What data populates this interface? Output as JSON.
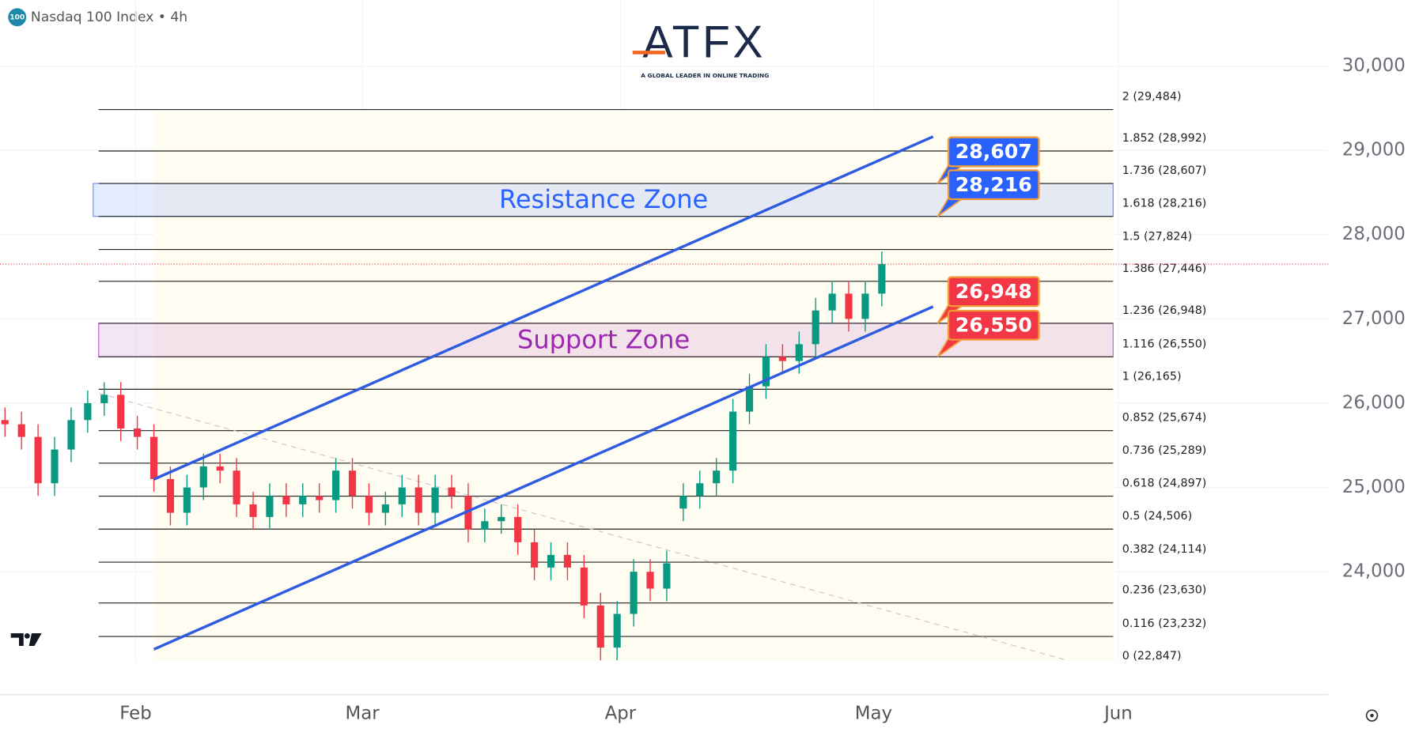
{
  "chart_data": {
    "type": "candlestick",
    "title": "Nasdaq 100 Index • 4h",
    "badge": "100",
    "brand": "ATFX",
    "brand_tagline": "A GLOBAL LEADER IN ONLINE TRADING",
    "up_color": "#089981",
    "down_color": "#f23645",
    "open": [
      25800,
      25750,
      25600,
      25050,
      25450,
      25800,
      26000,
      26100,
      25700,
      25600,
      25100,
      24700,
      25000,
      25250,
      25200,
      24800,
      24650,
      24900,
      24800,
      24900,
      24850,
      25200,
      24900,
      24700,
      24800,
      25000,
      24700,
      25000,
      24900,
      24500,
      24600,
      24650,
      24350,
      24050,
      24200,
      24050,
      23600,
      23100,
      23500,
      24000,
      23800,
      24750,
      24900,
      25050,
      25200,
      25900,
      26200,
      26550,
      26500,
      26700,
      27100,
      27300,
      27000,
      27300
    ],
    "high": [
      25950,
      25900,
      25750,
      25600,
      25950,
      26150,
      26250,
      26250,
      25850,
      25750,
      25250,
      25150,
      25400,
      25400,
      25350,
      24950,
      25050,
      25050,
      25050,
      25050,
      25350,
      25350,
      25050,
      24950,
      25150,
      25150,
      25150,
      25150,
      25050,
      24750,
      24800,
      24800,
      24500,
      24350,
      24350,
      24200,
      23750,
      23650,
      24150,
      24150,
      24250,
      25050,
      25200,
      25350,
      26050,
      26350,
      26700,
      26700,
      26850,
      27250,
      27450,
      27450,
      27450,
      27800
    ],
    "low": [
      25600,
      25450,
      24900,
      24900,
      25300,
      25650,
      25850,
      25550,
      25450,
      24950,
      24550,
      24550,
      24850,
      25050,
      24650,
      24500,
      24500,
      24650,
      24650,
      24700,
      24700,
      24750,
      24550,
      24550,
      24650,
      24550,
      24550,
      24750,
      24350,
      24350,
      24450,
      24200,
      23900,
      23900,
      23900,
      23450,
      22950,
      22950,
      23350,
      23650,
      23650,
      24600,
      24750,
      24900,
      25050,
      25750,
      26050,
      26350,
      26350,
      26550,
      26950,
      26850,
      26850,
      27150
    ],
    "close": [
      25750,
      25600,
      25050,
      25450,
      25800,
      26000,
      26100,
      25700,
      25600,
      25100,
      24700,
      25000,
      25250,
      25200,
      24800,
      24650,
      24900,
      24800,
      24900,
      24850,
      25200,
      24900,
      24700,
      24800,
      25000,
      24700,
      25000,
      24900,
      24500,
      24600,
      24650,
      24350,
      24050,
      24200,
      24050,
      23600,
      23100,
      23500,
      24000,
      23800,
      24100,
      24900,
      25050,
      25200,
      25900,
      26200,
      26550,
      26500,
      26700,
      27100,
      27300,
      27000,
      27300,
      27650
    ],
    "xlim": [
      -0.3,
      80
    ],
    "xticks": [
      {
        "value": 7.9,
        "label": "Feb"
      },
      {
        "value": 21.6,
        "label": "Mar"
      },
      {
        "value": 37.2,
        "label": "Apr"
      },
      {
        "value": 52.5,
        "label": "May"
      },
      {
        "value": 67.3,
        "label": "Jun"
      }
    ],
    "ylim": [
      22541,
      30783
    ],
    "yticks": [
      {
        "value": 24000,
        "label": "24,000"
      },
      {
        "value": 25000,
        "label": "25,000"
      },
      {
        "value": 26000,
        "label": "26,000"
      },
      {
        "value": 27000,
        "label": "27,000"
      },
      {
        "value": 28000,
        "label": "28,000"
      },
      {
        "value": 29000,
        "label": "29,000"
      },
      {
        "value": 30000,
        "label": "30,000"
      }
    ],
    "grid": true,
    "fib_levels": [
      {
        "value": 29484,
        "label": "2 (29,484)"
      },
      {
        "value": 28992,
        "label": "1.852 (28,992)"
      },
      {
        "value": 28607,
        "label": "1.736 (28,607)"
      },
      {
        "value": 28216,
        "label": "1.618 (28,216)"
      },
      {
        "value": 27824,
        "label": "1.5 (27,824)"
      },
      {
        "value": 27446,
        "label": "1.386 (27,446)"
      },
      {
        "value": 26948,
        "label": "1.236 (26,948)"
      },
      {
        "value": 26550,
        "label": "1.116 (26,550)"
      },
      {
        "value": 26165,
        "label": "1 (26,165)"
      },
      {
        "value": 25674,
        "label": "0.852 (25,674)"
      },
      {
        "value": 25289,
        "label": "0.736 (25,289)"
      },
      {
        "value": 24897,
        "label": "0.618 (24,897)"
      },
      {
        "value": 24506,
        "label": "0.5 (24,506)"
      },
      {
        "value": 24114,
        "label": "0.382 (24,114)"
      },
      {
        "value": 23630,
        "label": "0.236 (23,630)"
      },
      {
        "value": 23232,
        "label": "0.116 (23,232)"
      },
      {
        "value": 22847,
        "label": "0 (22,847)"
      }
    ],
    "zones": [
      {
        "label": "Resistance Zone",
        "low": 28216,
        "high": 28607,
        "color": "#2962ff"
      },
      {
        "label": "Support Zone",
        "low": 26550,
        "high": 26948,
        "color": "#9c27b0"
      }
    ],
    "callouts": [
      {
        "value": 28607,
        "label": "28,607",
        "color": "#2962ff"
      },
      {
        "value": 28216,
        "label": "28,216",
        "color": "#2962ff"
      },
      {
        "value": 26948,
        "label": "26,948",
        "color": "#f23645"
      },
      {
        "value": 26550,
        "label": "26,550",
        "color": "#f23645"
      }
    ],
    "channel": {
      "x": [
        9,
        56.1
      ],
      "upper": [
        25097,
        29163
      ],
      "lower": [
        23080,
        27146
      ],
      "color": "#2f5be0"
    },
    "trendline": {
      "x": [
        5.7,
        64.2
      ],
      "values": [
        26116,
        22950
      ]
    }
  }
}
